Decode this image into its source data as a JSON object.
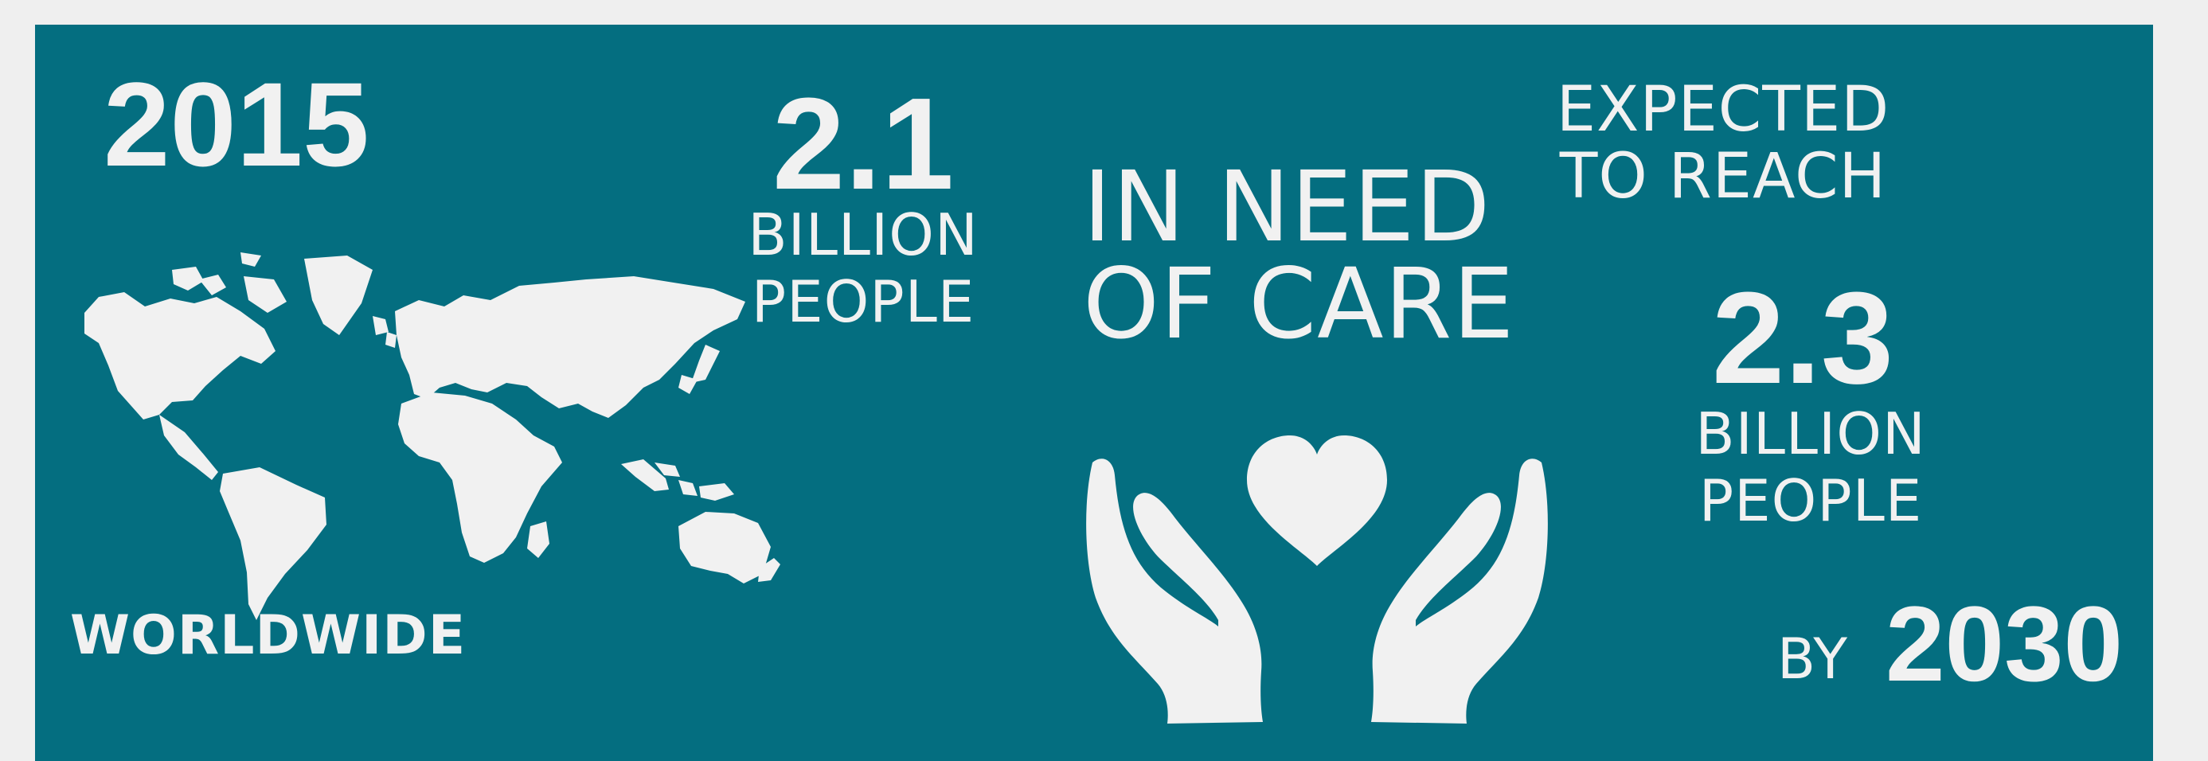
{
  "colors": {
    "background": "#efefef",
    "panel": "#046e80",
    "foreground": "#f1f1f1"
  },
  "left": {
    "year": "2015",
    "caption": "WORLDWIDE",
    "icon": "world-map-icon"
  },
  "current": {
    "value": "2.1",
    "unit_line1": "BILLION",
    "unit_line2": "PEOPLE"
  },
  "center": {
    "line1": "IN NEED",
    "line2": "OF CARE",
    "icon": "hands-holding-heart-icon"
  },
  "projection": {
    "intro_line1": "EXPECTED",
    "intro_line2": "TO REACH",
    "value": "2.3",
    "unit_line1": "BILLION",
    "unit_line2": "PEOPLE",
    "by_label": "BY",
    "year": "2030"
  }
}
